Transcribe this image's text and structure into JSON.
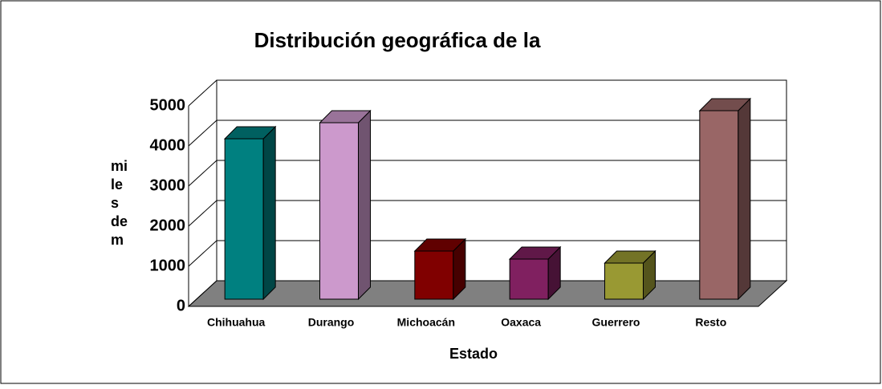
{
  "chart_data": {
    "type": "bar3d",
    "title": "Distribución geográfica de la",
    "x_label": "Estado",
    "y_label": [
      "mi",
      "le",
      "s",
      "de",
      "m"
    ],
    "categories": [
      "Chihuahua",
      "Durango",
      "Michoacán",
      "Oaxaca",
      "Guerrero",
      "Resto"
    ],
    "values": [
      4000,
      4400,
      1200,
      1000,
      900,
      4700
    ],
    "colors": [
      "#008080",
      "#cc99cc",
      "#800000",
      "#802060",
      "#999933",
      "#996666"
    ],
    "ylim": [
      0,
      5000
    ],
    "yticks": [
      0,
      1000,
      2000,
      3000,
      4000,
      5000
    ],
    "grid": true
  }
}
